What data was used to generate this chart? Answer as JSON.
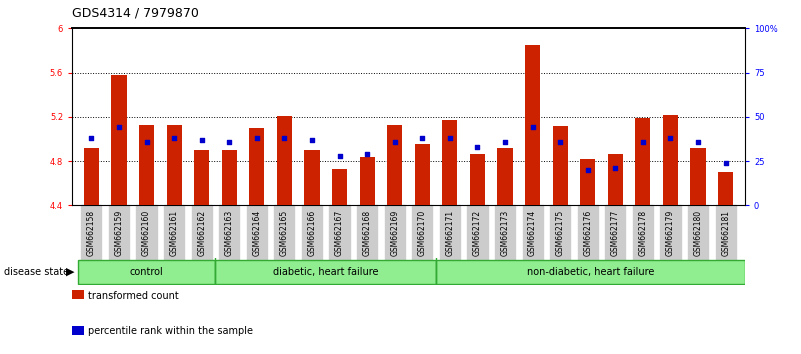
{
  "title": "GDS4314 / 7979870",
  "samples": [
    "GSM662158",
    "GSM662159",
    "GSM662160",
    "GSM662161",
    "GSM662162",
    "GSM662163",
    "GSM662164",
    "GSM662165",
    "GSM662166",
    "GSM662167",
    "GSM662168",
    "GSM662169",
    "GSM662170",
    "GSM662171",
    "GSM662172",
    "GSM662173",
    "GSM662174",
    "GSM662175",
    "GSM662176",
    "GSM662177",
    "GSM662178",
    "GSM662179",
    "GSM662180",
    "GSM662181"
  ],
  "red_values": [
    4.92,
    5.58,
    5.13,
    5.13,
    4.9,
    4.9,
    5.1,
    5.21,
    4.9,
    4.73,
    4.84,
    5.13,
    4.95,
    5.17,
    4.86,
    4.92,
    5.85,
    5.12,
    4.82,
    4.86,
    5.19,
    5.22,
    4.92,
    4.7
  ],
  "blue_percentiles": [
    38,
    44,
    36,
    38,
    37,
    36,
    38,
    38,
    37,
    28,
    29,
    36,
    38,
    38,
    33,
    36,
    44,
    36,
    20,
    21,
    36,
    38,
    36,
    24
  ],
  "group_boundaries": [
    0,
    5,
    12,
    24
  ],
  "group_labels": [
    "control",
    "diabetic, heart failure",
    "non-diabetic, heart failure"
  ],
  "ylim_left": [
    4.4,
    6.0
  ],
  "ylim_right": [
    0,
    100
  ],
  "yticks_left": [
    4.4,
    4.8,
    5.2,
    5.6,
    6.0
  ],
  "ytick_labels_left": [
    "4.4",
    "4.8",
    "5.2",
    "5.6",
    "6"
  ],
  "yticks_right": [
    0,
    25,
    50,
    75,
    100
  ],
  "ytick_labels_right": [
    "0",
    "25",
    "50",
    "75",
    "100%"
  ],
  "bar_color": "#CC2200",
  "blue_color": "#0000CC",
  "tick_bg_color": "#CCCCCC",
  "group_fill_color": "#90EE90",
  "group_edge_color": "#33AA33",
  "title_fontsize": 9,
  "tick_fontsize": 6,
  "group_fontsize": 7,
  "legend_fontsize": 7
}
